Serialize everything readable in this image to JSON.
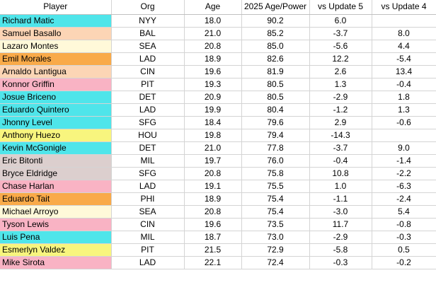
{
  "columns": [
    "Player",
    "Org",
    "Age",
    "2025 Age/Power",
    "vs Update 5",
    "vs Update 4"
  ],
  "colors": {
    "cyan": "#4fe5ea",
    "peach": "#fcd5b5",
    "cream": "#fff9d9",
    "orange": "#f9aa49",
    "pink": "#f9b3c4",
    "yellow": "#f8f57e",
    "mauve": "#dccfce"
  },
  "rows": [
    {
      "player": "Richard Matic",
      "org": "NYY",
      "age": "18.0",
      "power": "90.2",
      "u5": "6.0",
      "u4": "",
      "color": "cyan"
    },
    {
      "player": "Samuel Basallo",
      "org": "BAL",
      "age": "21.0",
      "power": "85.2",
      "u5": "-3.7",
      "u4": "8.0",
      "color": "peach"
    },
    {
      "player": "Lazaro Montes",
      "org": "SEA",
      "age": "20.8",
      "power": "85.0",
      "u5": "-5.6",
      "u4": "4.4",
      "color": "cream"
    },
    {
      "player": "Emil Morales",
      "org": "LAD",
      "age": "18.9",
      "power": "82.6",
      "u5": "12.2",
      "u4": "-5.4",
      "color": "orange"
    },
    {
      "player": "Arnaldo Lantigua",
      "org": "CIN",
      "age": "19.6",
      "power": "81.9",
      "u5": "2.6",
      "u4": "13.4",
      "color": "peach"
    },
    {
      "player": "Konnor Griffin",
      "org": "PIT",
      "age": "19.3",
      "power": "80.5",
      "u5": "1.3",
      "u4": "-0.4",
      "color": "pink"
    },
    {
      "player": "Josue Briceno",
      "org": "DET",
      "age": "20.9",
      "power": "80.5",
      "u5": "-2.9",
      "u4": "1.8",
      "color": "cyan"
    },
    {
      "player": "Eduardo Quintero",
      "org": "LAD",
      "age": "19.9",
      "power": "80.4",
      "u5": "-1.2",
      "u4": "1.3",
      "color": "cyan"
    },
    {
      "player": "Jhonny Level",
      "org": "SFG",
      "age": "18.4",
      "power": "79.6",
      "u5": "2.9",
      "u4": "-0.6",
      "color": "cyan"
    },
    {
      "player": "Anthony Huezo",
      "org": "HOU",
      "age": "19.8",
      "power": "79.4",
      "u5": "-14.3",
      "u4": "",
      "color": "yellow"
    },
    {
      "player": "Kevin McGonigle",
      "org": "DET",
      "age": "21.0",
      "power": "77.8",
      "u5": "-3.7",
      "u4": "9.0",
      "color": "cyan"
    },
    {
      "player": "Eric Bitonti",
      "org": "MIL",
      "age": "19.7",
      "power": "76.0",
      "u5": "-0.4",
      "u4": "-1.4",
      "color": "mauve"
    },
    {
      "player": "Bryce Eldridge",
      "org": "SFG",
      "age": "20.8",
      "power": "75.8",
      "u5": "10.8",
      "u4": "-2.2",
      "color": "mauve"
    },
    {
      "player": "Chase Harlan",
      "org": "LAD",
      "age": "19.1",
      "power": "75.5",
      "u5": "1.0",
      "u4": "-6.3",
      "color": "pink"
    },
    {
      "player": "Eduardo Tait",
      "org": "PHI",
      "age": "18.9",
      "power": "75.4",
      "u5": "-1.1",
      "u4": "-2.4",
      "color": "orange"
    },
    {
      "player": "Michael Arroyo",
      "org": "SEA",
      "age": "20.8",
      "power": "75.4",
      "u5": "-3.0",
      "u4": "5.4",
      "color": "cream"
    },
    {
      "player": "Tyson Lewis",
      "org": "CIN",
      "age": "19.6",
      "power": "73.5",
      "u5": "11.7",
      "u4": "-0.8",
      "color": "pink"
    },
    {
      "player": "Luis Pena",
      "org": "MIL",
      "age": "18.7",
      "power": "73.0",
      "u5": "-2.9",
      "u4": "-0.3",
      "color": "cyan"
    },
    {
      "player": "Esmerlyn Valdez",
      "org": "PIT",
      "age": "21.5",
      "power": "72.9",
      "u5": "-5.8",
      "u4": "0.5",
      "color": "yellow"
    },
    {
      "player": "Mike Sirota",
      "org": "LAD",
      "age": "22.1",
      "power": "72.4",
      "u5": "-0.3",
      "u4": "-0.2",
      "color": "pink"
    }
  ]
}
